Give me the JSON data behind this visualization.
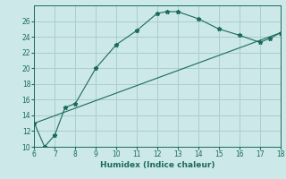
{
  "xlabel": "Humidex (Indice chaleur)",
  "curve_x": [
    6,
    6.5,
    7,
    7.5,
    8,
    9,
    10,
    11,
    12,
    12.5,
    13,
    14,
    15,
    16,
    17,
    17.5,
    18
  ],
  "curve_y": [
    13,
    10,
    11.5,
    15,
    15.5,
    20,
    23,
    24.8,
    27,
    27.2,
    27.2,
    26.3,
    25,
    24.2,
    23.3,
    23.8,
    24.5
  ],
  "line_x": [
    6,
    18
  ],
  "line_y": [
    13,
    24.5
  ],
  "xlim": [
    6,
    18
  ],
  "ylim": [
    10,
    28
  ],
  "xticks": [
    6,
    7,
    8,
    9,
    10,
    11,
    12,
    13,
    14,
    15,
    16,
    17,
    18
  ],
  "yticks": [
    10,
    12,
    14,
    16,
    18,
    20,
    22,
    24,
    26
  ],
  "bg_color": "#cce8e8",
  "grid_color": "#aacece",
  "line_color": "#1a6b5a",
  "marker": "*",
  "marker_size": 3.5,
  "tick_fontsize": 5.5,
  "xlabel_fontsize": 6.5
}
